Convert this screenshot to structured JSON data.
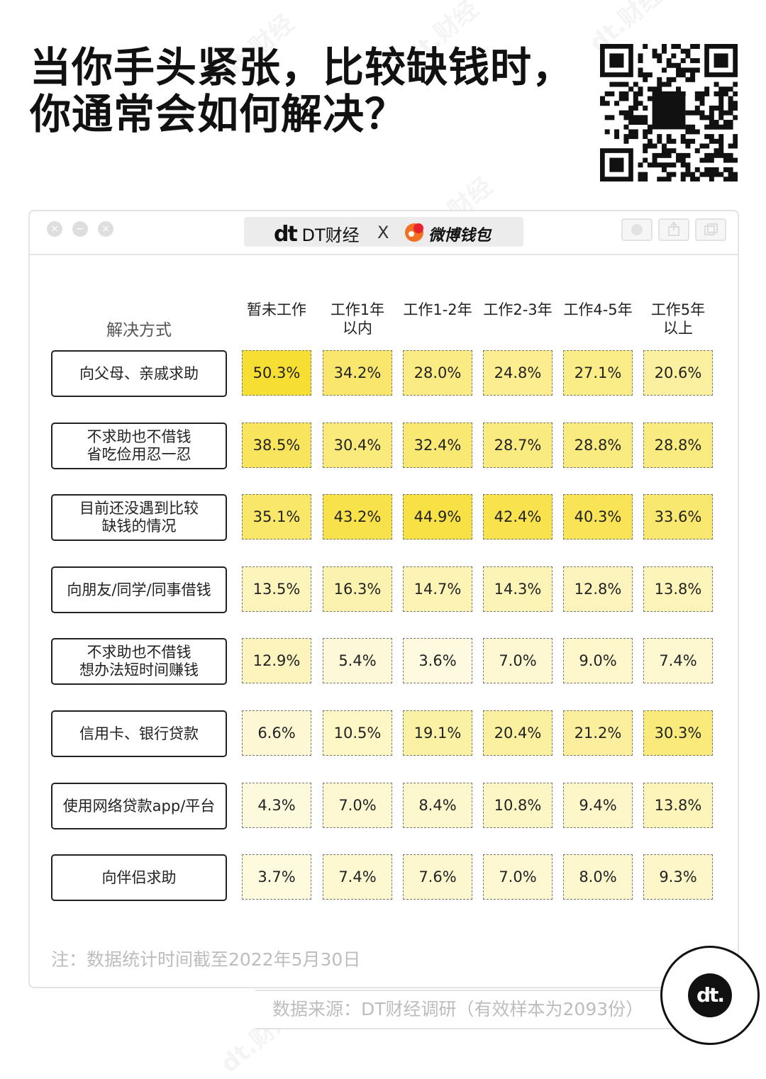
{
  "title_lines": [
    "当你手头紧张，比较缺钱时，",
    "你通常会如何解决？"
  ],
  "brand": {
    "left_mark": "dt",
    "left_name": "DT财经",
    "separator": "X",
    "right_name": "微博钱包"
  },
  "watermark": "dt.财经",
  "colors": {
    "accent_yellow": "#f7e234",
    "pale_yellow": "#fefbe3"
  },
  "chart_data": {
    "type": "table",
    "row_header": "解决方式",
    "columns": [
      "暂未工作",
      "工作1年\n以内",
      "工作1-2年",
      "工作2-3年",
      "工作4-5年",
      "工作5年\n以上"
    ],
    "rows": [
      {
        "label": "向父母、亲戚求助",
        "values": [
          "50.3%",
          "34.2%",
          "28.0%",
          "24.8%",
          "27.1%",
          "20.6%"
        ]
      },
      {
        "label": "不求助也不借钱\n省吃俭用忍一忍",
        "values": [
          "38.5%",
          "30.4%",
          "32.4%",
          "28.7%",
          "28.8%",
          "28.8%"
        ]
      },
      {
        "label": "目前还没遇到比较\n缺钱的情况",
        "values": [
          "35.1%",
          "43.2%",
          "44.9%",
          "42.4%",
          "40.3%",
          "33.6%"
        ]
      },
      {
        "label": "向朋友/同学/同事借钱",
        "values": [
          "13.5%",
          "16.3%",
          "14.7%",
          "14.3%",
          "12.8%",
          "13.8%"
        ]
      },
      {
        "label": "不求助也不借钱\n想办法短时间赚钱",
        "values": [
          "12.9%",
          "5.4%",
          "3.6%",
          "7.0%",
          "9.0%",
          "7.4%"
        ]
      },
      {
        "label": "信用卡、银行贷款",
        "values": [
          "6.6%",
          "10.5%",
          "19.1%",
          "20.4%",
          "21.2%",
          "30.3%"
        ]
      },
      {
        "label": "使用网络贷款app/平台",
        "values": [
          "4.3%",
          "7.0%",
          "8.4%",
          "10.8%",
          "9.4%",
          "13.8%"
        ]
      },
      {
        "label": "向伴侣求助",
        "values": [
          "3.7%",
          "7.4%",
          "7.6%",
          "7.0%",
          "8.0%",
          "9.3%"
        ]
      }
    ]
  },
  "note": "注：数据统计时间截至2022年5月30日",
  "source": "数据来源：DT财经调研（有效样本为2093份）",
  "badge": "dt."
}
